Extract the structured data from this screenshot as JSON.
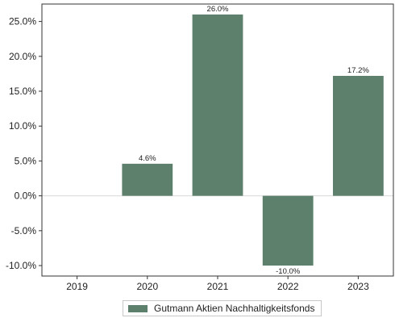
{
  "colors": {
    "bar": "#5d806c",
    "axis": "#333333",
    "zero_line": "#d9d9d9"
  },
  "chart_data": {
    "type": "bar",
    "categories": [
      "2019",
      "2020",
      "2021",
      "2022",
      "2023"
    ],
    "series": [
      {
        "name": "Gutmann Aktien Nachhaltigkeitsfonds",
        "values": [
          null,
          4.6,
          26.0,
          -10.0,
          17.2
        ],
        "labels": [
          "",
          "4.6%",
          "26.0%",
          "-10.0%",
          "17.2%"
        ]
      }
    ],
    "yticks": [
      25.0,
      20.0,
      15.0,
      10.0,
      5.0,
      0.0,
      -5.0,
      -10.0
    ],
    "ytick_labels": [
      "25.0%",
      "20.0%",
      "15.0%",
      "10.0%",
      "5.0%",
      "0.0%",
      "-5.0%",
      "-10.0%"
    ],
    "ylim": [
      -11.5,
      27.5
    ],
    "grid": false,
    "legend_position": "bottom-center"
  }
}
